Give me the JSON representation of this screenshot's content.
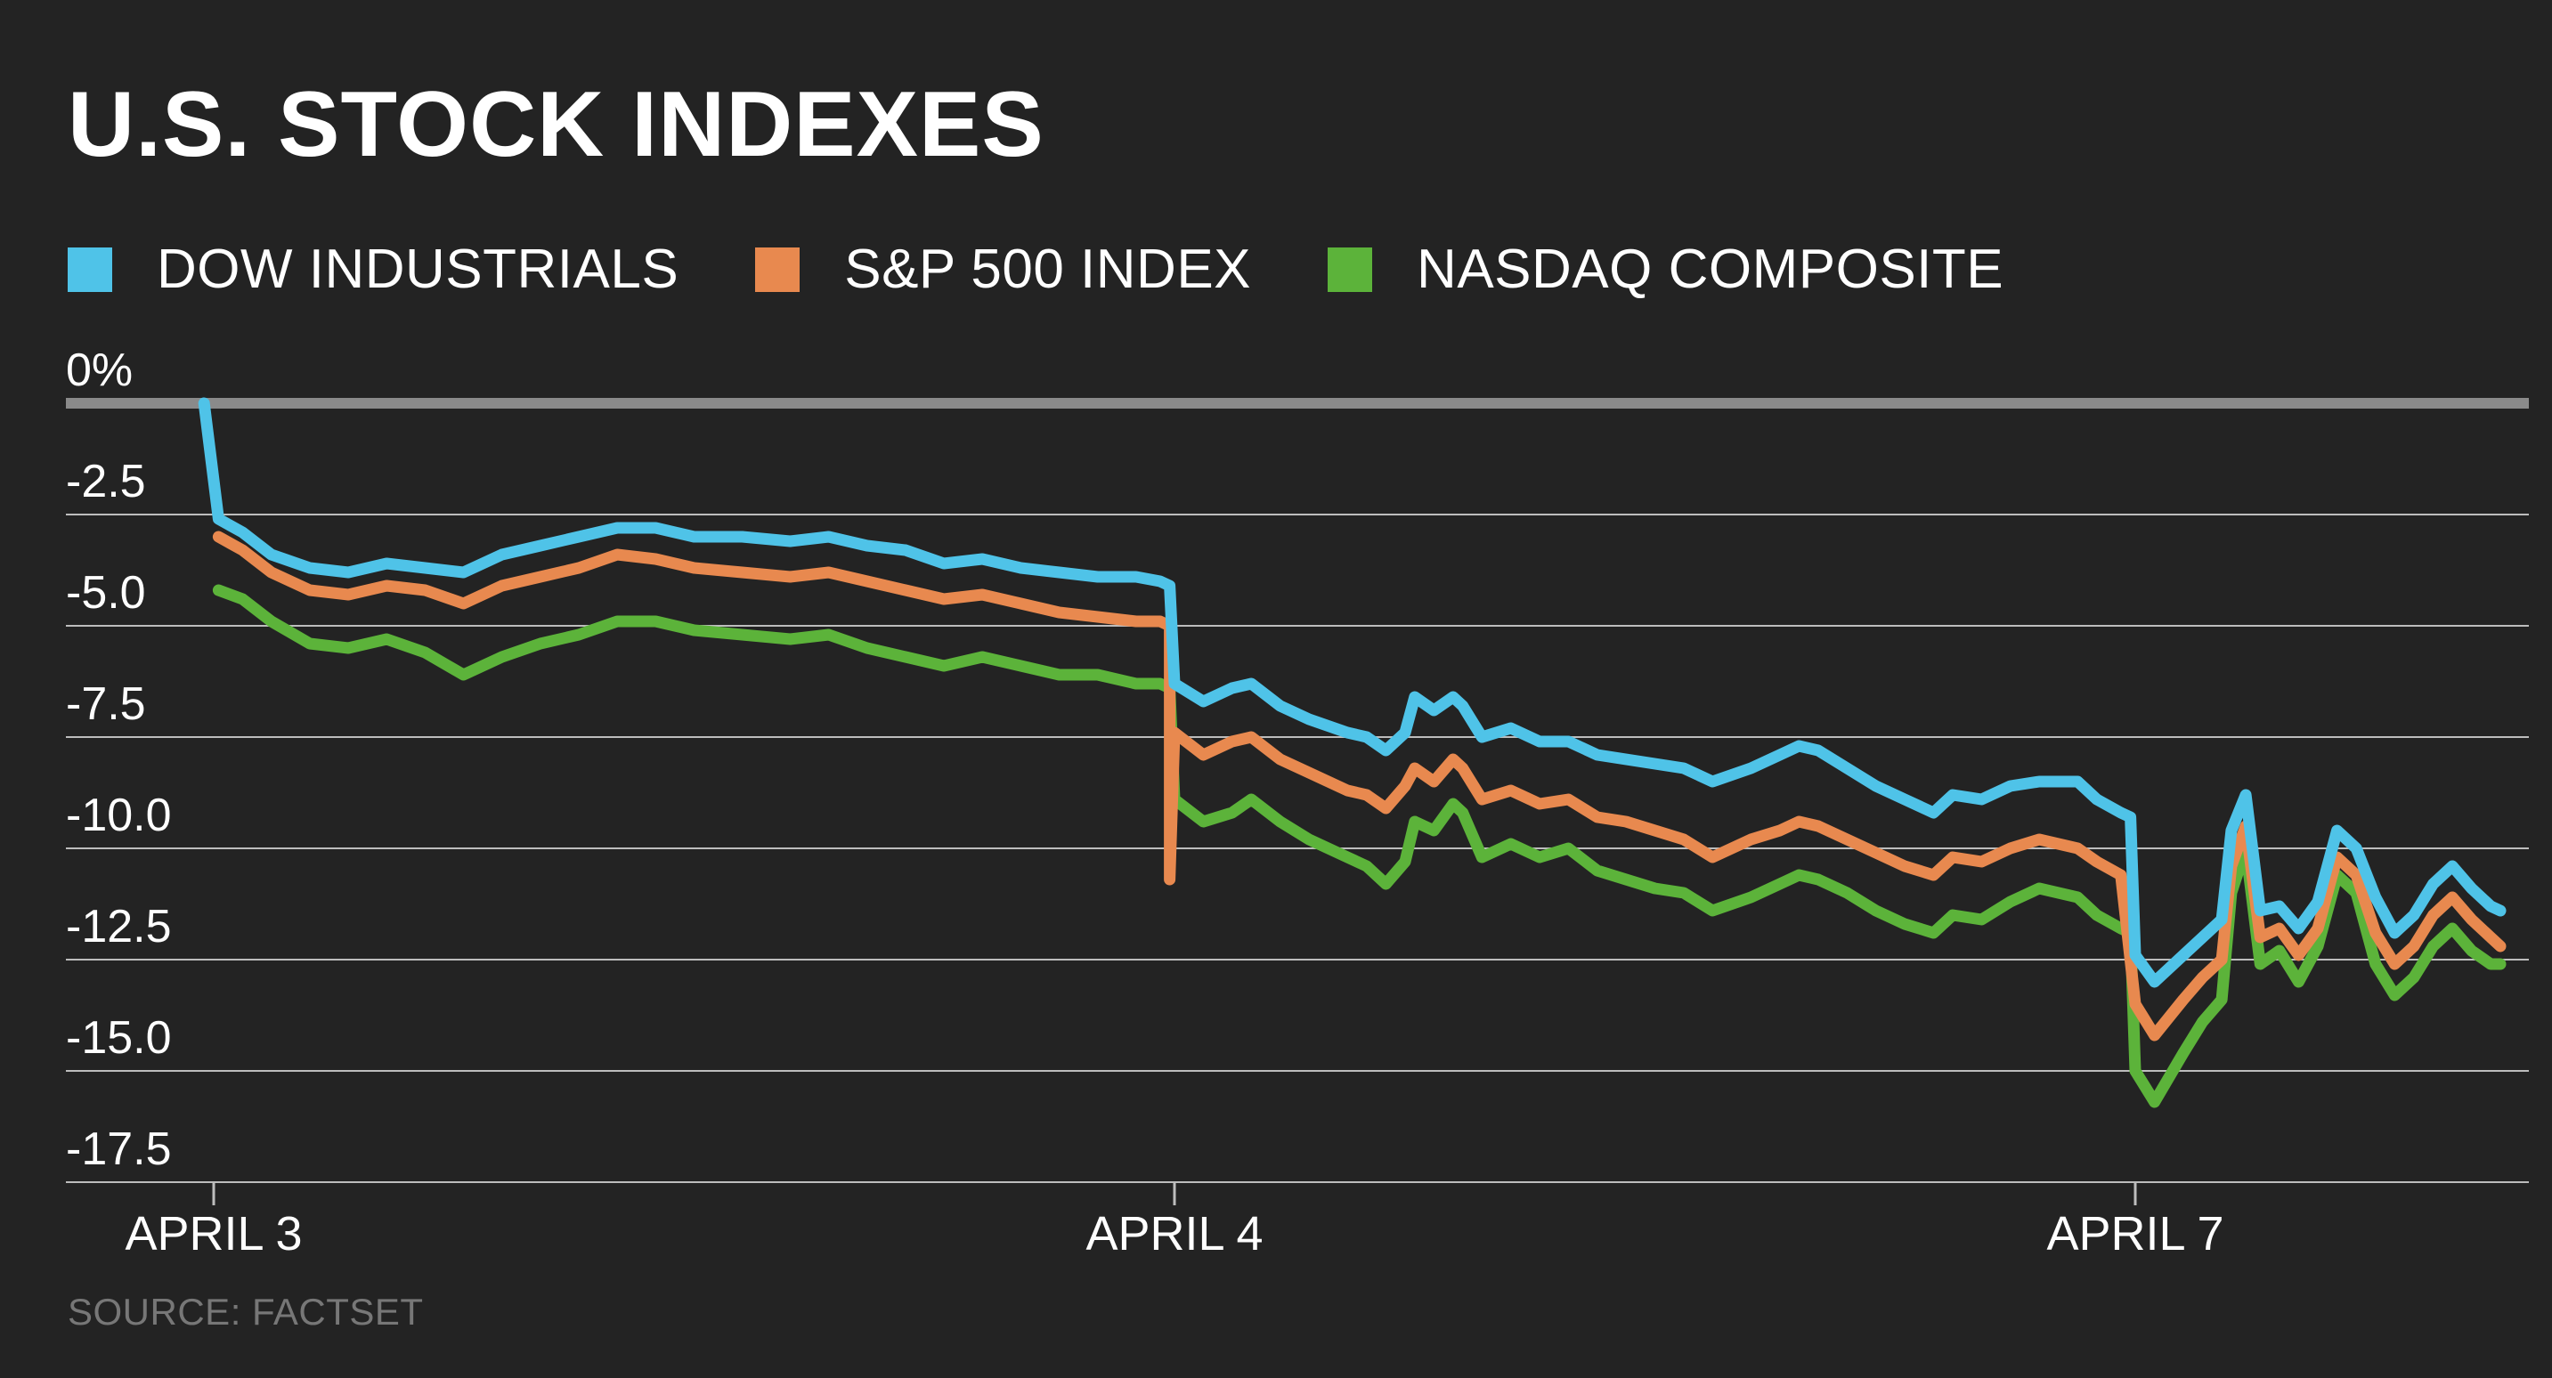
{
  "title": "U.S. STOCK INDEXES",
  "source": "SOURCE: FACTSET",
  "legend": [
    {
      "label": "DOW INDUSTRIALS",
      "color": "#4fc3e8"
    },
    {
      "label": "S&P 500 INDEX",
      "color": "#e8894f"
    },
    {
      "label": "NASDAQ COMPOSITE",
      "color": "#5cb33a"
    }
  ],
  "chart_data": {
    "type": "line",
    "title": "U.S. STOCK INDEXES",
    "xlabel": "",
    "ylabel": "",
    "ylim": [
      -17.5,
      0
    ],
    "x_range": [
      -0.155,
      2.38
    ],
    "y_ticks": [
      {
        "value": 0,
        "label": "0%"
      },
      {
        "value": -2.5,
        "label": "-2.5"
      },
      {
        "value": -5,
        "label": "-5.0"
      },
      {
        "value": -7.5,
        "label": "-7.5"
      },
      {
        "value": -10,
        "label": "-10.0"
      },
      {
        "value": -12.5,
        "label": "-12.5"
      },
      {
        "value": -15,
        "label": "-15.0"
      },
      {
        "value": -17.5,
        "label": "-17.5"
      }
    ],
    "x_ticks": [
      {
        "value": 0,
        "label": "APRIL 3"
      },
      {
        "value": 1,
        "label": "APRIL 4"
      },
      {
        "value": 2,
        "label": "APRIL 7"
      }
    ],
    "grid": true,
    "series": [
      {
        "name": "DOW INDUSTRIALS",
        "color": "#4fc3e8",
        "points": [
          [
            -0.01,
            0
          ],
          [
            0.005,
            -2.6
          ],
          [
            0.03,
            -2.9
          ],
          [
            0.06,
            -3.4
          ],
          [
            0.1,
            -3.7
          ],
          [
            0.14,
            -3.8
          ],
          [
            0.18,
            -3.6
          ],
          [
            0.22,
            -3.7
          ],
          [
            0.26,
            -3.8
          ],
          [
            0.3,
            -3.4
          ],
          [
            0.34,
            -3.2
          ],
          [
            0.38,
            -3.0
          ],
          [
            0.42,
            -2.8
          ],
          [
            0.46,
            -2.8
          ],
          [
            0.5,
            -3.0
          ],
          [
            0.55,
            -3.0
          ],
          [
            0.6,
            -3.1
          ],
          [
            0.64,
            -3.0
          ],
          [
            0.68,
            -3.2
          ],
          [
            0.72,
            -3.3
          ],
          [
            0.76,
            -3.6
          ],
          [
            0.8,
            -3.5
          ],
          [
            0.84,
            -3.7
          ],
          [
            0.88,
            -3.8
          ],
          [
            0.92,
            -3.9
          ],
          [
            0.96,
            -3.9
          ],
          [
            0.985,
            -4.0
          ],
          [
            0.995,
            -4.1
          ],
          [
            1.0,
            -6.3
          ],
          [
            1.03,
            -6.7
          ],
          [
            1.06,
            -6.4
          ],
          [
            1.08,
            -6.3
          ],
          [
            1.11,
            -6.8
          ],
          [
            1.14,
            -7.1
          ],
          [
            1.18,
            -7.4
          ],
          [
            1.2,
            -7.5
          ],
          [
            1.22,
            -7.8
          ],
          [
            1.24,
            -7.4
          ],
          [
            1.25,
            -6.6
          ],
          [
            1.27,
            -6.9
          ],
          [
            1.29,
            -6.6
          ],
          [
            1.3,
            -6.8
          ],
          [
            1.32,
            -7.5
          ],
          [
            1.35,
            -7.3
          ],
          [
            1.38,
            -7.6
          ],
          [
            1.41,
            -7.6
          ],
          [
            1.44,
            -7.9
          ],
          [
            1.47,
            -8.0
          ],
          [
            1.5,
            -8.1
          ],
          [
            1.53,
            -8.2
          ],
          [
            1.56,
            -8.5
          ],
          [
            1.6,
            -8.2
          ],
          [
            1.63,
            -7.9
          ],
          [
            1.65,
            -7.7
          ],
          [
            1.67,
            -7.8
          ],
          [
            1.7,
            -8.2
          ],
          [
            1.73,
            -8.6
          ],
          [
            1.76,
            -8.9
          ],
          [
            1.79,
            -9.2
          ],
          [
            1.81,
            -8.8
          ],
          [
            1.84,
            -8.9
          ],
          [
            1.87,
            -8.6
          ],
          [
            1.9,
            -8.5
          ],
          [
            1.92,
            -8.5
          ],
          [
            1.94,
            -8.5
          ],
          [
            1.96,
            -8.9
          ],
          [
            1.985,
            -9.2
          ],
          [
            1.995,
            -9.3
          ],
          [
            2.0,
            -12.4
          ],
          [
            2.02,
            -13.0
          ],
          [
            2.05,
            -12.4
          ],
          [
            2.07,
            -12.0
          ],
          [
            2.09,
            -11.6
          ],
          [
            2.1,
            -9.6
          ],
          [
            2.115,
            -8.8
          ],
          [
            2.13,
            -11.4
          ],
          [
            2.15,
            -11.3
          ],
          [
            2.17,
            -11.8
          ],
          [
            2.19,
            -11.2
          ],
          [
            2.21,
            -9.6
          ],
          [
            2.23,
            -10.0
          ],
          [
            2.25,
            -11.1
          ],
          [
            2.27,
            -11.9
          ],
          [
            2.29,
            -11.5
          ],
          [
            2.31,
            -10.8
          ],
          [
            2.33,
            -10.4
          ],
          [
            2.35,
            -10.9
          ],
          [
            2.37,
            -11.3
          ],
          [
            2.38,
            -11.4
          ]
        ]
      },
      {
        "name": "S&P 500 INDEX",
        "color": "#e8894f",
        "points": [
          [
            0.005,
            -3.0
          ],
          [
            0.03,
            -3.3
          ],
          [
            0.06,
            -3.8
          ],
          [
            0.1,
            -4.2
          ],
          [
            0.14,
            -4.3
          ],
          [
            0.18,
            -4.1
          ],
          [
            0.22,
            -4.2
          ],
          [
            0.26,
            -4.5
          ],
          [
            0.3,
            -4.1
          ],
          [
            0.34,
            -3.9
          ],
          [
            0.38,
            -3.7
          ],
          [
            0.42,
            -3.4
          ],
          [
            0.46,
            -3.5
          ],
          [
            0.5,
            -3.7
          ],
          [
            0.55,
            -3.8
          ],
          [
            0.6,
            -3.9
          ],
          [
            0.64,
            -3.8
          ],
          [
            0.68,
            -4.0
          ],
          [
            0.72,
            -4.2
          ],
          [
            0.76,
            -4.4
          ],
          [
            0.8,
            -4.3
          ],
          [
            0.84,
            -4.5
          ],
          [
            0.88,
            -4.7
          ],
          [
            0.92,
            -4.8
          ],
          [
            0.96,
            -4.9
          ],
          [
            0.985,
            -4.9
          ],
          [
            0.995,
            -5.0
          ],
          [
            1.0,
            -7.4
          ],
          [
            1.03,
            -7.9
          ],
          [
            1.06,
            -7.6
          ],
          [
            1.08,
            -7.5
          ],
          [
            1.11,
            -8.0
          ],
          [
            1.14,
            -8.3
          ],
          [
            1.18,
            -8.7
          ],
          [
            1.2,
            -8.8
          ],
          [
            1.22,
            -9.1
          ],
          [
            1.24,
            -8.6
          ],
          [
            1.25,
            -8.2
          ],
          [
            1.27,
            -8.5
          ],
          [
            1.29,
            -8.0
          ],
          [
            1.3,
            -8.2
          ],
          [
            1.32,
            -8.9
          ],
          [
            1.35,
            -8.7
          ],
          [
            1.38,
            -9.0
          ],
          [
            1.41,
            -8.9
          ],
          [
            1.44,
            -9.3
          ],
          [
            1.47,
            -9.4
          ],
          [
            1.5,
            -9.6
          ],
          [
            1.53,
            -9.8
          ],
          [
            1.56,
            -10.2
          ],
          [
            1.6,
            -9.8
          ],
          [
            1.63,
            -9.6
          ],
          [
            1.65,
            -9.4
          ],
          [
            1.67,
            -9.5
          ],
          [
            1.7,
            -9.8
          ],
          [
            1.73,
            -10.1
          ],
          [
            1.76,
            -10.4
          ],
          [
            1.79,
            -10.6
          ],
          [
            1.81,
            -10.2
          ],
          [
            1.84,
            -10.3
          ],
          [
            1.87,
            -10.0
          ],
          [
            1.9,
            -9.8
          ],
          [
            1.92,
            -9.9
          ],
          [
            1.94,
            -10.0
          ],
          [
            1.96,
            -10.3
          ],
          [
            1.985,
            -10.6
          ],
          [
            0.995,
            -10.7
          ],
          [
            2.0,
            -13.5
          ],
          [
            2.02,
            -14.2
          ],
          [
            2.05,
            -13.4
          ],
          [
            2.07,
            -12.9
          ],
          [
            2.09,
            -12.5
          ],
          [
            2.1,
            -10.4
          ],
          [
            2.115,
            -9.5
          ],
          [
            2.13,
            -12.0
          ],
          [
            2.15,
            -11.8
          ],
          [
            2.17,
            -12.4
          ],
          [
            2.19,
            -11.8
          ],
          [
            2.21,
            -10.2
          ],
          [
            2.23,
            -10.6
          ],
          [
            2.25,
            -11.9
          ],
          [
            2.27,
            -12.6
          ],
          [
            2.29,
            -12.2
          ],
          [
            2.31,
            -11.5
          ],
          [
            2.33,
            -11.1
          ],
          [
            2.35,
            -11.6
          ],
          [
            2.37,
            -12.0
          ],
          [
            2.38,
            -12.2
          ]
        ]
      },
      {
        "name": "NASDAQ COMPOSITE",
        "color": "#5cb33a",
        "points": [
          [
            0.005,
            -4.2
          ],
          [
            0.03,
            -4.4
          ],
          [
            0.06,
            -4.9
          ],
          [
            0.1,
            -5.4
          ],
          [
            0.14,
            -5.5
          ],
          [
            0.18,
            -5.3
          ],
          [
            0.22,
            -5.6
          ],
          [
            0.26,
            -6.1
          ],
          [
            0.3,
            -5.7
          ],
          [
            0.34,
            -5.4
          ],
          [
            0.38,
            -5.2
          ],
          [
            0.42,
            -4.9
          ],
          [
            0.46,
            -4.9
          ],
          [
            0.5,
            -5.1
          ],
          [
            0.55,
            -5.2
          ],
          [
            0.6,
            -5.3
          ],
          [
            0.64,
            -5.2
          ],
          [
            0.68,
            -5.5
          ],
          [
            0.72,
            -5.7
          ],
          [
            0.76,
            -5.9
          ],
          [
            0.8,
            -5.7
          ],
          [
            0.84,
            -5.9
          ],
          [
            0.88,
            -6.1
          ],
          [
            0.92,
            -6.1
          ],
          [
            0.96,
            -6.3
          ],
          [
            0.985,
            -6.3
          ],
          [
            0.995,
            -6.4
          ],
          [
            1.0,
            -8.9
          ],
          [
            1.03,
            -9.4
          ],
          [
            1.06,
            -9.2
          ],
          [
            1.08,
            -8.9
          ],
          [
            1.11,
            -9.4
          ],
          [
            1.14,
            -9.8
          ],
          [
            1.18,
            -10.2
          ],
          [
            1.2,
            -10.4
          ],
          [
            1.22,
            -10.8
          ],
          [
            1.24,
            -10.3
          ],
          [
            1.25,
            -9.4
          ],
          [
            1.27,
            -9.6
          ],
          [
            1.29,
            -9.0
          ],
          [
            1.3,
            -9.2
          ],
          [
            1.32,
            -10.2
          ],
          [
            1.35,
            -9.9
          ],
          [
            1.38,
            -10.2
          ],
          [
            1.41,
            -10.0
          ],
          [
            1.44,
            -10.5
          ],
          [
            1.47,
            -10.7
          ],
          [
            1.5,
            -10.9
          ],
          [
            1.53,
            -11.0
          ],
          [
            1.56,
            -11.4
          ],
          [
            1.6,
            -11.1
          ],
          [
            1.63,
            -10.8
          ],
          [
            1.65,
            -10.6
          ],
          [
            1.67,
            -10.7
          ],
          [
            1.7,
            -11.0
          ],
          [
            1.73,
            -11.4
          ],
          [
            1.76,
            -11.7
          ],
          [
            1.79,
            -11.9
          ],
          [
            1.81,
            -11.5
          ],
          [
            1.84,
            -11.6
          ],
          [
            1.87,
            -11.2
          ],
          [
            1.9,
            -10.9
          ],
          [
            1.92,
            -11.0
          ],
          [
            1.94,
            -11.1
          ],
          [
            1.96,
            -11.5
          ],
          [
            1.985,
            -11.8
          ],
          [
            1.995,
            -11.9
          ],
          [
            2.0,
            -15.0
          ],
          [
            2.02,
            -15.7
          ],
          [
            2.05,
            -14.6
          ],
          [
            2.07,
            -13.9
          ],
          [
            2.09,
            -13.4
          ],
          [
            2.1,
            -11.0
          ],
          [
            2.115,
            -10.0
          ],
          [
            2.13,
            -12.6
          ],
          [
            2.15,
            -12.3
          ],
          [
            2.17,
            -13.0
          ],
          [
            2.19,
            -12.2
          ],
          [
            2.21,
            -10.6
          ],
          [
            2.23,
            -11.0
          ],
          [
            2.25,
            -12.6
          ],
          [
            2.27,
            -13.3
          ],
          [
            2.29,
            -12.9
          ],
          [
            2.31,
            -12.2
          ],
          [
            2.33,
            -11.8
          ],
          [
            2.35,
            -12.3
          ],
          [
            2.37,
            -12.6
          ],
          [
            2.38,
            -12.6
          ]
        ]
      }
    ]
  }
}
